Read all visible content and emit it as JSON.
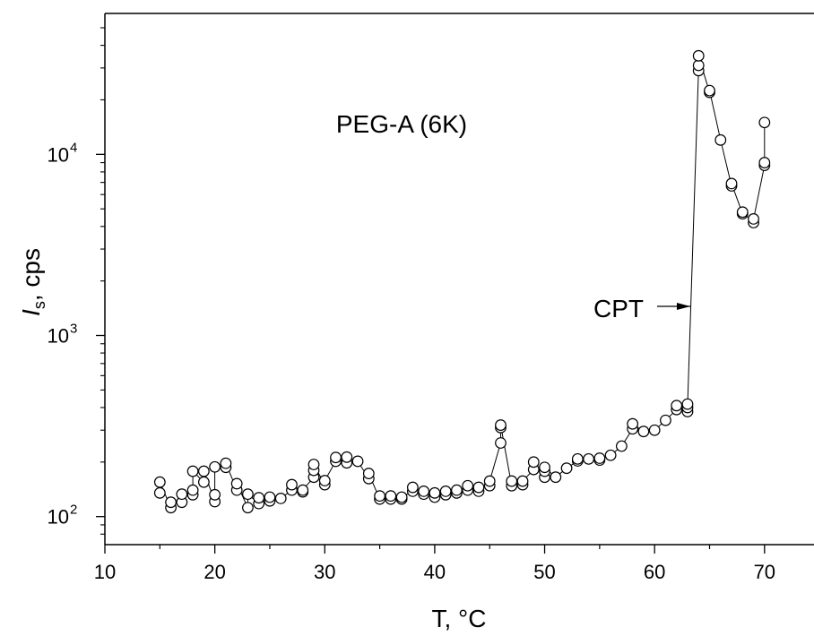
{
  "chart_data": {
    "type": "scatter",
    "title": "",
    "xlabel": "T, °C",
    "ylabel_main": "I",
    "ylabel_sub": "s",
    "ylabel_rest": ", cps",
    "xlim": [
      10,
      74.5
    ],
    "ylim": [
      70,
      60000
    ],
    "yscale": "log",
    "grid": false,
    "x_ticks": [
      10,
      20,
      30,
      40,
      50,
      60,
      70
    ],
    "x_tick_labels": [
      "10",
      "20",
      "30",
      "40",
      "50",
      "60",
      "70"
    ],
    "y_ticks": [
      100,
      1000,
      10000
    ],
    "y_tick_labels": [
      {
        "base": "10",
        "exp": "2"
      },
      {
        "base": "10",
        "exp": "3"
      },
      {
        "base": "10",
        "exp": "4"
      }
    ],
    "marker": "open-circle",
    "connected": true,
    "annotations": [
      {
        "text": "PEG-A (6K)",
        "x": 27,
        "y": 15000
      },
      {
        "text": "CPT",
        "x": 59.2,
        "y": 1000,
        "arrow_to": [
          63.3,
          1000
        ]
      }
    ],
    "series": [
      {
        "x": [
          15,
          15,
          16,
          16,
          17,
          17,
          18,
          18,
          18,
          19,
          19,
          20,
          20,
          20,
          21,
          21,
          22,
          22,
          23,
          23,
          24,
          24,
          25,
          25,
          26,
          27,
          27,
          28,
          28,
          29,
          29,
          29,
          30,
          30,
          31,
          31,
          32,
          32,
          33,
          34,
          34,
          35,
          35,
          36,
          36,
          37,
          37,
          38,
          38,
          39,
          39,
          40,
          40,
          41,
          41,
          42,
          42,
          43,
          43,
          44,
          44,
          45,
          45,
          46,
          46,
          46,
          47,
          47,
          48,
          48,
          49,
          49,
          50,
          50,
          50,
          51,
          52,
          53,
          53,
          54,
          55,
          55,
          56,
          57,
          58,
          58,
          59,
          60,
          61,
          62,
          62,
          63,
          63,
          63,
          64,
          64,
          64,
          65,
          65,
          66,
          67,
          67,
          68,
          68,
          69,
          69,
          70,
          70,
          70
        ],
        "y": [
          135,
          155,
          112,
          120,
          120,
          133,
          132,
          140,
          178,
          155,
          178,
          121,
          132,
          188,
          187,
          197,
          140,
          152,
          112,
          133,
          118,
          127,
          122,
          128,
          126,
          140,
          150,
          137,
          140,
          165,
          180,
          194,
          150,
          158,
          202,
          212,
          198,
          213,
          202,
          162,
          173,
          125,
          130,
          125,
          130,
          125,
          128,
          138,
          145,
          133,
          138,
          128,
          135,
          132,
          138,
          135,
          140,
          140,
          148,
          138,
          145,
          148,
          157,
          255,
          310,
          320,
          148,
          157,
          150,
          157,
          182,
          200,
          165,
          178,
          187,
          165,
          185,
          203,
          208,
          208,
          205,
          210,
          218,
          245,
          305,
          325,
          295,
          300,
          340,
          390,
          410,
          380,
          400,
          418,
          29000,
          31000,
          35000,
          22000,
          22500,
          12000,
          6700,
          6900,
          4700,
          4800,
          4200,
          4400,
          8700,
          9000,
          15000
        ]
      }
    ]
  }
}
